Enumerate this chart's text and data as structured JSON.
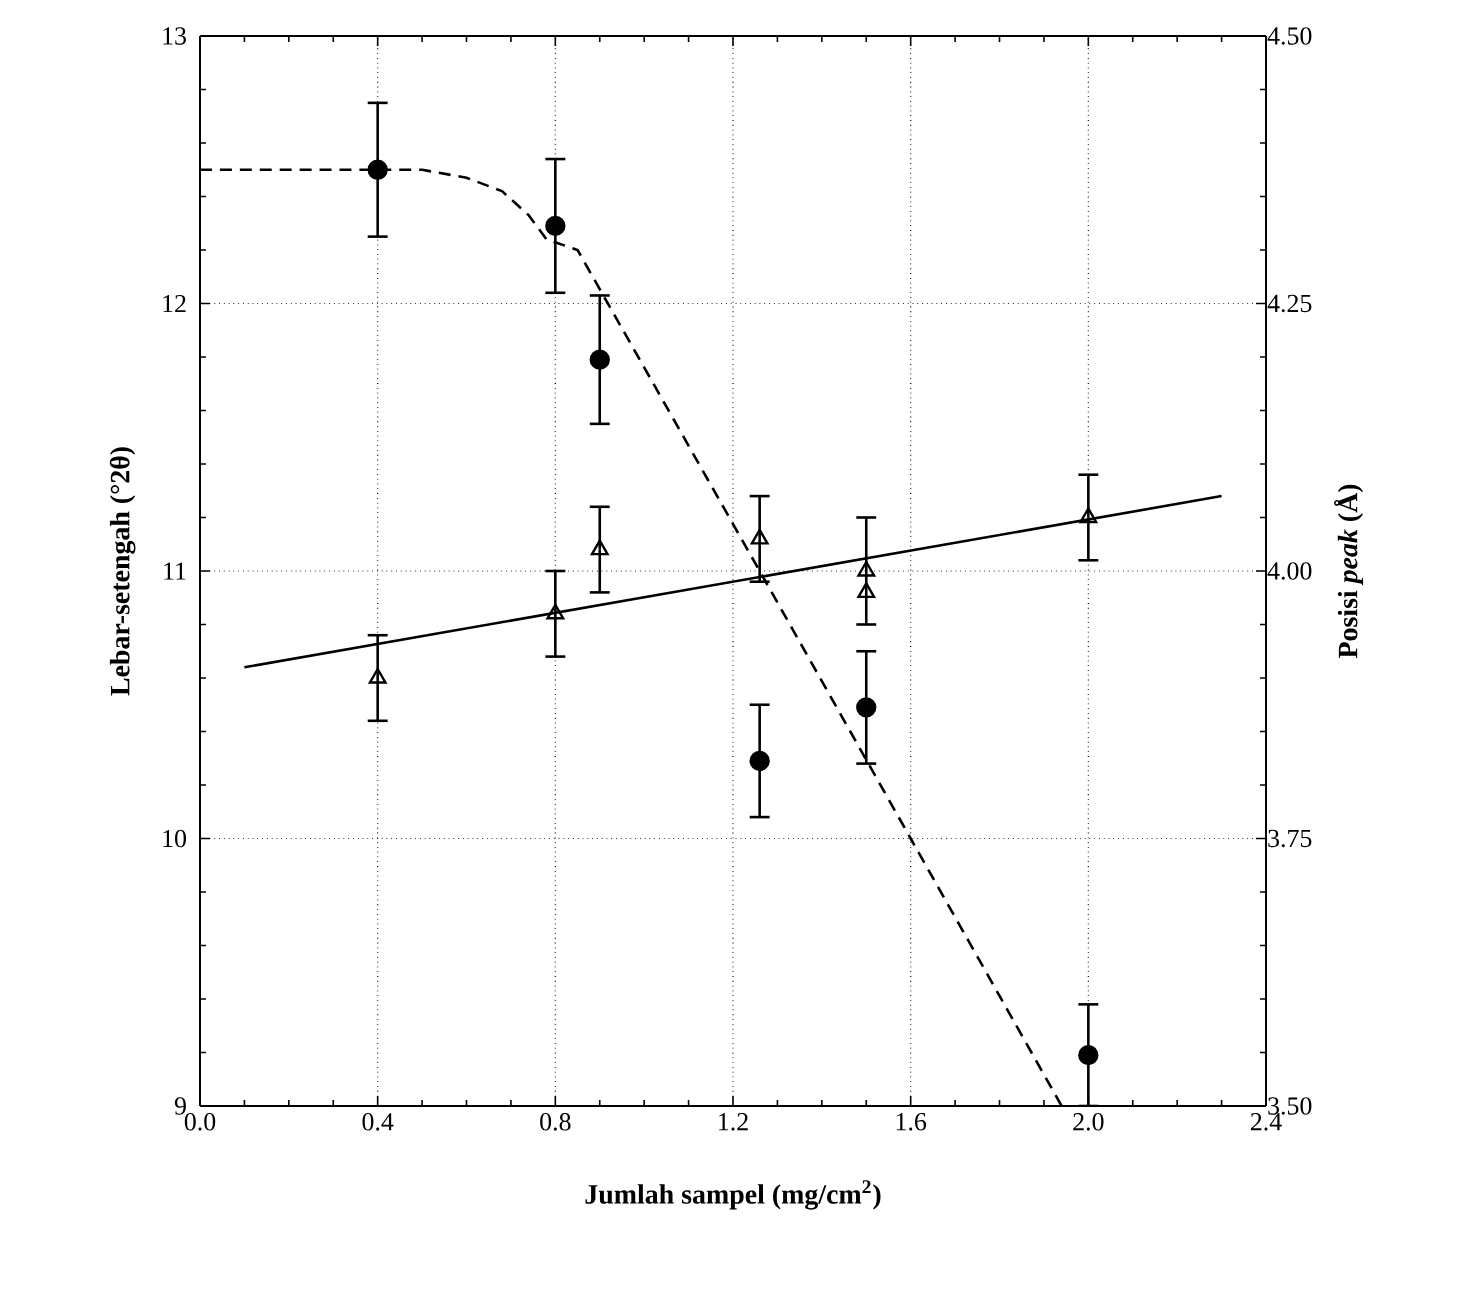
{
  "chart_data": {
    "type": "scatter",
    "xlabel": "Jumlah sampel (mg/cm$^{2}$)",
    "ylabel": "Lebar-setengah (°2θ)",
    "y2label": "Posisi *peak* (Å)",
    "xlim": [
      0,
      2.4
    ],
    "xticks": [
      {
        "value": 0,
        "label": "0.0"
      },
      0.4,
      0.8,
      1.2,
      1.6,
      {
        "value": 2,
        "label": "2.0"
      },
      2.4
    ],
    "ylim": [
      9,
      13
    ],
    "yticks": [
      9,
      10,
      11,
      12,
      13
    ],
    "y2lim": [
      3.5,
      4.5
    ],
    "y2ticks": [
      {
        "value": 3.5,
        "label": "3.50"
      },
      3.75,
      {
        "value": 4,
        "label": "4.00"
      },
      4.25,
      {
        "value": 4.5,
        "label": "4.50"
      }
    ],
    "grid": true,
    "series": [
      {
        "type": "scatter",
        "color": "#000000",
        "marker": "circle",
        "x": [
          0.4,
          0.8,
          0.9,
          1.26,
          1.5,
          2.0
        ],
        "values": [
          12.5,
          12.29,
          11.79,
          10.29,
          10.49,
          9.19
        ],
        "errors": [
          0.25,
          0.25,
          0.24,
          0.21,
          0.21,
          0.19
        ]
      },
      {
        "type": "scatter",
        "color": "#000000",
        "marker": "triangle",
        "axis": "y2",
        "x": [
          0.4,
          0.8,
          0.9,
          1.26,
          1.5,
          1.5,
          2.0
        ],
        "values": [
          3.9,
          3.96,
          4.02,
          4.03,
          4.0,
          3.98,
          4.05
        ],
        "errors": [
          0.04,
          0.04,
          0.04,
          0.04,
          0.05,
          null,
          0.04
        ]
      },
      {
        "type": "line",
        "color": "#000000",
        "line_style": "dashed",
        "x": [
          0,
          0.5,
          0.6,
          0.68,
          0.74,
          0.78,
          0.85,
          1.26,
          1.6,
          1.94
        ],
        "values": [
          12.5,
          12.5,
          12.47,
          12.42,
          12.33,
          12.24,
          12.2,
          11.0,
          10.0,
          9.0
        ]
      },
      {
        "type": "line",
        "color": "#000000",
        "line_style": "solid",
        "axis": "y2",
        "x": [
          0.1,
          2.3
        ],
        "values": [
          3.91,
          4.07
        ]
      }
    ]
  }
}
